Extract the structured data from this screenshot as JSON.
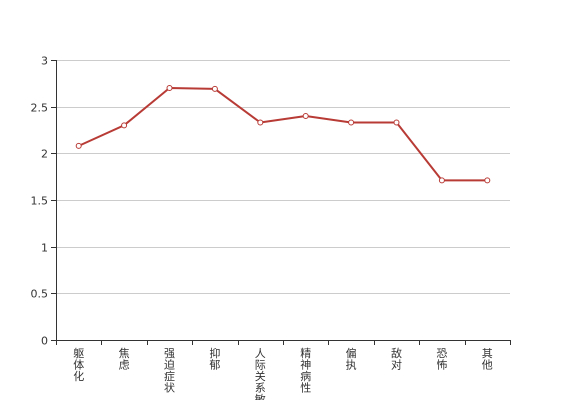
{
  "chart_data": {
    "type": "line",
    "title": "",
    "xlabel": "",
    "ylabel": "",
    "categories": [
      "躯体化",
      "焦虑",
      "强迫症状",
      "抑郁",
      "人际关系敏",
      "精神病性",
      "偏执",
      "敌对",
      "恐怖",
      "其他"
    ],
    "series": [
      {
        "values": [
          2.08,
          2.3,
          2.7,
          2.69,
          2.33,
          2.4,
          2.33,
          2.33,
          1.71,
          1.71
        ]
      }
    ],
    "ylim": [
      0,
      3
    ],
    "yticks": [
      0,
      0.5,
      1,
      1.5,
      2,
      2.5,
      3
    ],
    "ytick_labels": [
      "0",
      "0.5",
      "1",
      "1.5",
      "2",
      "2.5",
      "3"
    ],
    "grid": true,
    "legend": "none",
    "line_color": "#b83b36",
    "grid_color": "#cccccc",
    "axis_color": "#333333"
  }
}
